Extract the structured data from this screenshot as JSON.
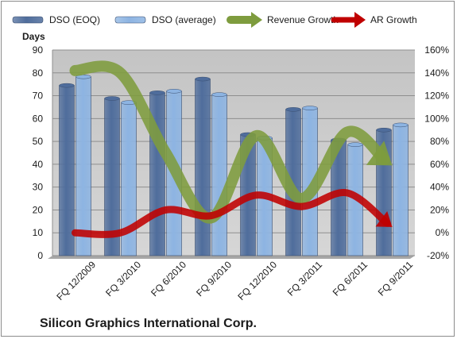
{
  "chart_data": {
    "type": "bar",
    "title": "Silicon Graphics International Corp.",
    "ylabel": "Days",
    "ylim": [
      0,
      90
    ],
    "y_ticks": [
      "0",
      "10",
      "20",
      "30",
      "40",
      "50",
      "60",
      "70",
      "80",
      "90"
    ],
    "y2lim": [
      -20,
      160
    ],
    "y2_ticks": [
      "-20%",
      "0%",
      "20%",
      "40%",
      "60%",
      "80%",
      "100%",
      "120%",
      "140%",
      "160%"
    ],
    "categories": [
      "FQ 12/2009",
      "FQ 3/2010",
      "FQ 6/2010",
      "FQ 9/2010",
      "FQ 12/2010",
      "FQ 3/2011",
      "FQ 6/2011",
      "FQ 9/2011"
    ],
    "legend_position": "top",
    "grid": true,
    "series": [
      {
        "name": "DSO (EOQ)",
        "kind": "bar",
        "axis": "left",
        "color": "#4f6d9c",
        "values": [
          74.5,
          68.8,
          71.3,
          77.3,
          53.0,
          64.0,
          50.6,
          55.0
        ]
      },
      {
        "name": "DSO (average)",
        "kind": "bar",
        "axis": "left",
        "color": "#8db4e2",
        "values": [
          78.3,
          67.0,
          72.0,
          70.5,
          51.5,
          64.6,
          48.6,
          57.2
        ]
      },
      {
        "name": "Revenue Growth",
        "kind": "arrow",
        "axis": "right",
        "color": "#7e9c3e",
        "values": [
          142,
          140,
          70,
          13,
          85,
          30,
          88,
          59
        ]
      },
      {
        "name": "AR Growth",
        "kind": "arrow",
        "axis": "right",
        "color": "#c00000",
        "values": [
          0,
          0,
          20,
          15,
          33,
          23,
          35,
          5
        ]
      }
    ]
  }
}
